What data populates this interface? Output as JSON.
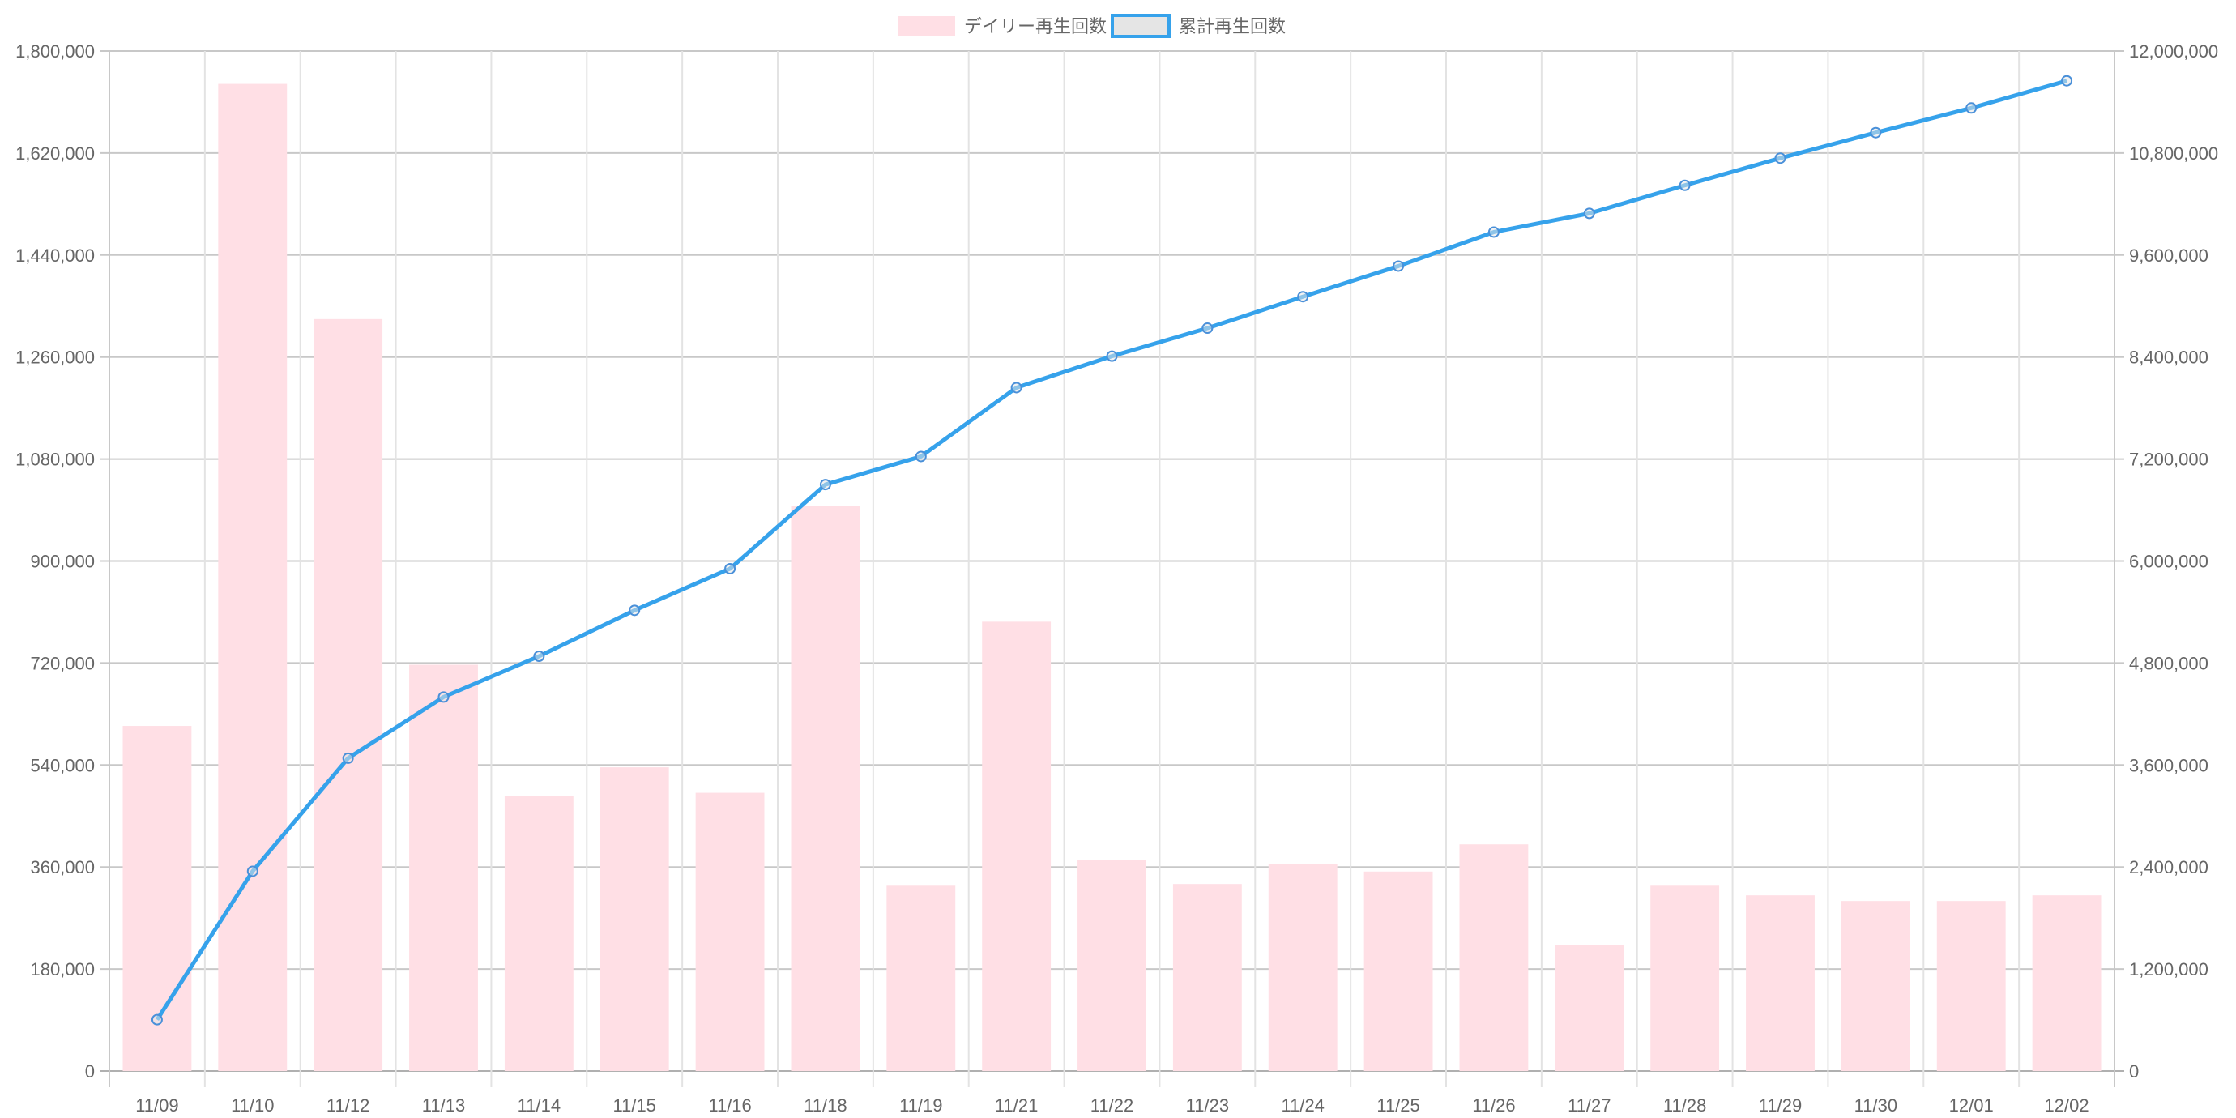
{
  "chart_data": {
    "type": "bar+line",
    "categories": [
      "11/09",
      "11/10",
      "11/12",
      "11/13",
      "11/14",
      "11/15",
      "11/16",
      "11/18",
      "11/19",
      "11/21",
      "11/22",
      "11/23",
      "11/24",
      "11/25",
      "11/26",
      "11/27",
      "11/28",
      "11/29",
      "11/30",
      "12/01",
      "12/02"
    ],
    "series": [
      {
        "name": "デイリー再生回数",
        "type": "bar",
        "axis": "left",
        "color": "#ffdfe5",
        "values": [
          609000,
          1742000,
          1327000,
          717000,
          486000,
          536000,
          491000,
          997000,
          327000,
          793000,
          373000,
          330000,
          365000,
          352000,
          400000,
          222000,
          327000,
          310000,
          300000,
          300000,
          310000
        ]
      },
      {
        "name": "累計再生回数",
        "type": "line",
        "axis": "right",
        "color": "#36a2eb",
        "values": [
          604000,
          2350000,
          3680000,
          4400000,
          4880000,
          5420000,
          5910000,
          6900000,
          7230000,
          8040000,
          8410000,
          8740000,
          9110000,
          9470000,
          9870000,
          10090000,
          10420000,
          10740000,
          11040000,
          11330000,
          11650000
        ]
      }
    ],
    "left_axis": {
      "range": [
        0,
        1800000
      ],
      "ticks": [
        "0",
        "180,000",
        "360,000",
        "540,000",
        "720,000",
        "900,000",
        "1,080,000",
        "1,260,000",
        "1,440,000",
        "1,620,000",
        "1,800,000"
      ]
    },
    "right_axis": {
      "range": [
        0,
        12000000
      ],
      "ticks": [
        "0",
        "1,200,000",
        "2,400,000",
        "3,600,000",
        "4,800,000",
        "6,000,000",
        "7,200,000",
        "8,400,000",
        "9,600,000",
        "10,800,000",
        "12,000,000"
      ]
    },
    "legend": {
      "placement": "top-center",
      "items": [
        "デイリー再生回数",
        "累計再生回数"
      ]
    },
    "grid": true
  }
}
